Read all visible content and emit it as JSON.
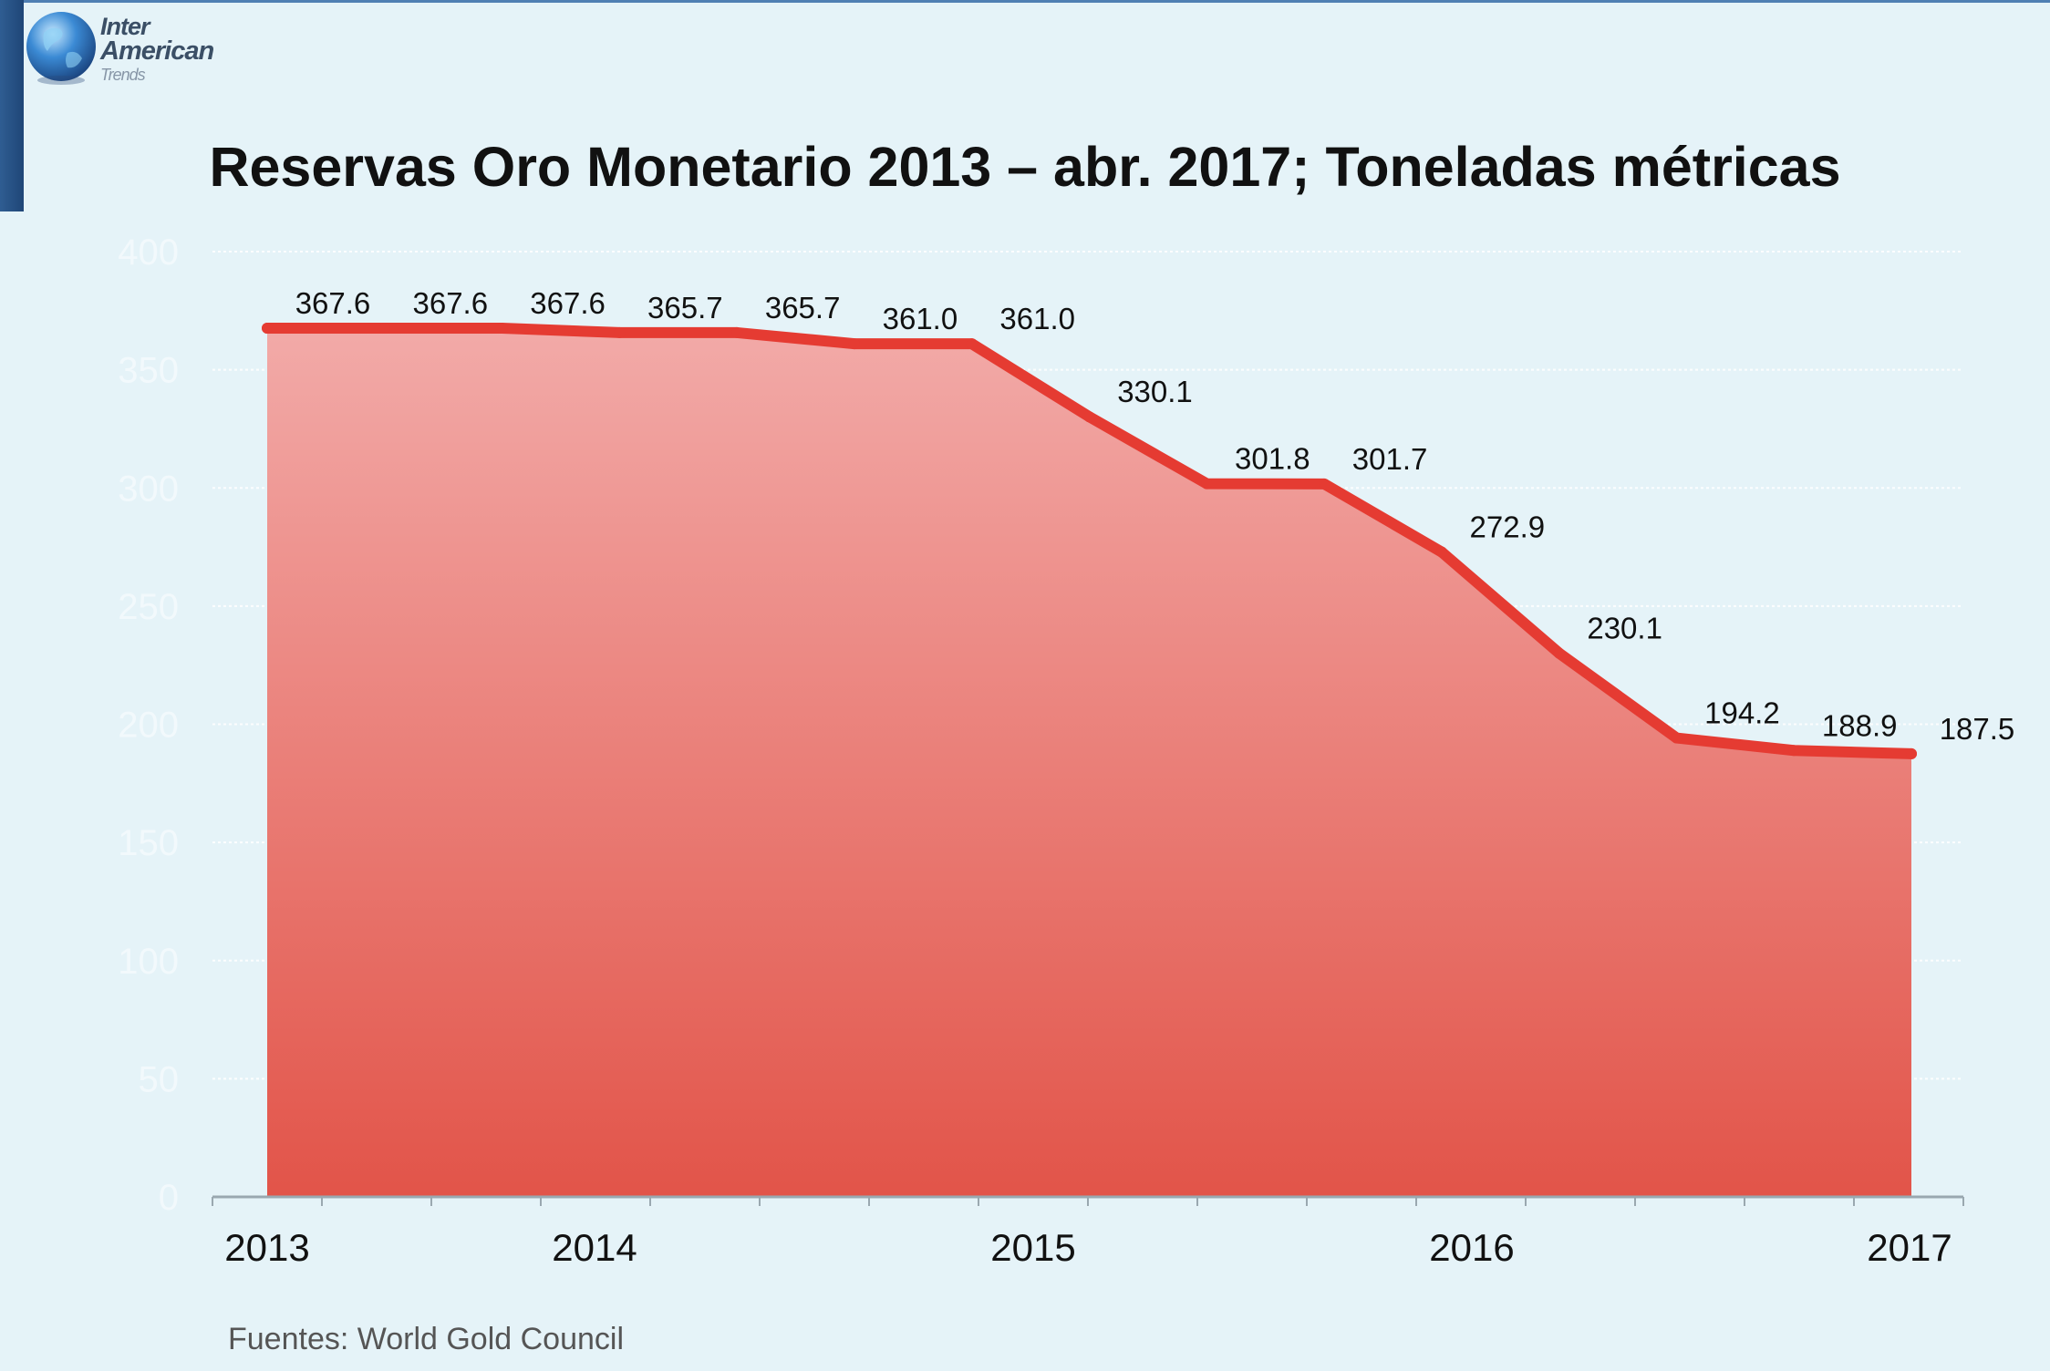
{
  "logo": {
    "line1": "Inter",
    "line2": "American",
    "line3": "Trends"
  },
  "source": "Fuentes: World Gold Council",
  "colors": {
    "line": "#e53b32",
    "fill_top": "#f2aaa8",
    "fill_bottom": "#e25449",
    "background": "#e5f3f8",
    "axis": "#9aa8b0"
  },
  "chart_data": {
    "type": "area",
    "title": "Reservas Oro Monetario 2013 – abr. 2017; Toneladas métricas",
    "xlabel": "",
    "ylabel": "",
    "ylim": [
      0,
      400
    ],
    "y_ticks": [
      "0",
      "50",
      "100",
      "150",
      "200",
      "250",
      "300",
      "350",
      "400"
    ],
    "grid": true,
    "legend": "none",
    "x_ticks": [
      "2013",
      "2014",
      "2015",
      "2016",
      "2017"
    ],
    "values": [
      367.6,
      367.6,
      367.6,
      365.7,
      365.7,
      361.0,
      361.0,
      330.1,
      301.8,
      301.7,
      272.9,
      230.1,
      194.2,
      188.9,
      187.5
    ],
    "data_labels": [
      "367.6",
      "367.6",
      "367.6",
      "365.7",
      "365.7",
      "361.0",
      "361.0",
      "330.1",
      "301.8",
      "301.7",
      "272.9",
      "230.1",
      "194.2",
      "188.9",
      "187.5"
    ]
  }
}
